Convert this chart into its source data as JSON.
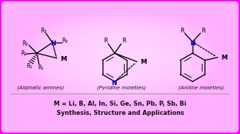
{
  "bg_outer": "#FF00FF",
  "bg_inner_color": "#FFD0FF",
  "title_line1": "M = Li, B, Al, In, Si, Ge, Sn, Pb, P, Sb, Bi",
  "title_line2": "Synthesis, Structure and Applications",
  "label1": "(Aliphatic amines)",
  "label2": "(Pyridine moieties)",
  "label3": "(Aniline moieties)",
  "text_color": "#111111",
  "n_color": "#0000CC",
  "divider_color": "#999999",
  "fig_width": 3.39,
  "fig_height": 1.89,
  "dpi": 100
}
